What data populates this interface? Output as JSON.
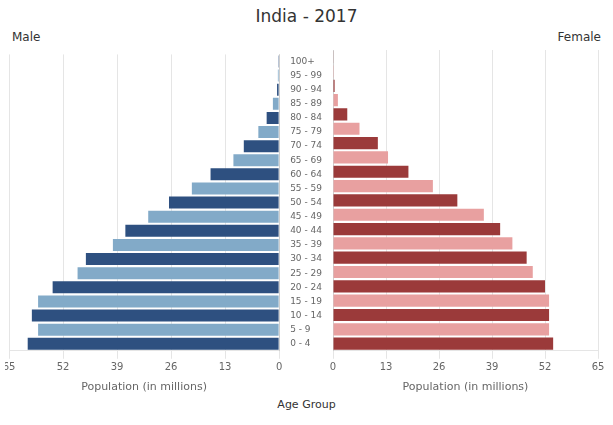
{
  "chart_data": {
    "type": "bar",
    "orientation": "horizontal",
    "title": "India - 2017",
    "ylabel": "Age Group",
    "categories": [
      "0 - 4",
      "5 - 9",
      "10 - 14",
      "15 - 19",
      "20 - 24",
      "25 - 29",
      "30 - 34",
      "35 - 39",
      "40 - 44",
      "45 - 49",
      "50 - 54",
      "55 - 59",
      "60 - 64",
      "65 - 69",
      "70 - 74",
      "75 - 79",
      "80 - 84",
      "85 - 89",
      "90 - 94",
      "95 - 99",
      "100+"
    ],
    "series": [
      {
        "name": "Male",
        "xlabel": "Population (in millions)",
        "values": [
          60.5,
          58.0,
          59.5,
          58.0,
          54.5,
          48.5,
          46.5,
          40.0,
          37.0,
          31.5,
          26.5,
          21.0,
          16.5,
          11.0,
          8.5,
          5.0,
          3.0,
          1.5,
          0.5,
          0.3,
          0.2
        ],
        "colors": [
          "#2E5080",
          "#82AAC8",
          "#2E5080",
          "#82AAC8",
          "#2E5080",
          "#82AAC8",
          "#2E5080",
          "#82AAC8",
          "#2E5080",
          "#82AAC8",
          "#2E5080",
          "#82AAC8",
          "#2E5080",
          "#82AAC8",
          "#2E5080",
          "#82AAC8",
          "#2E5080",
          "#82AAC8",
          "#2E5080",
          "#82AAC8",
          "#2E5080"
        ]
      },
      {
        "name": "Female",
        "xlabel": "Population (in millions)",
        "values": [
          54.0,
          53.0,
          53.0,
          53.0,
          52.0,
          49.0,
          47.5,
          44.0,
          41.0,
          37.0,
          30.5,
          24.5,
          18.5,
          13.5,
          11.0,
          6.5,
          3.5,
          1.2,
          0.4,
          0.2,
          0.1
        ],
        "colors": [
          "#9B3A3A",
          "#E8A0A0",
          "#9B3A3A",
          "#E8A0A0",
          "#9B3A3A",
          "#E8A0A0",
          "#9B3A3A",
          "#E8A0A0",
          "#9B3A3A",
          "#E8A0A0",
          "#9B3A3A",
          "#E8A0A0",
          "#9B3A3A",
          "#E8A0A0",
          "#9B3A3A",
          "#E8A0A0",
          "#9B3A3A",
          "#E8A0A0",
          "#9B3A3A",
          "#E8A0A0",
          "#9B3A3A"
        ]
      }
    ],
    "xlim": [
      0,
      65
    ],
    "xticks": [
      0,
      13,
      26,
      39,
      52,
      65
    ],
    "grid": true
  }
}
